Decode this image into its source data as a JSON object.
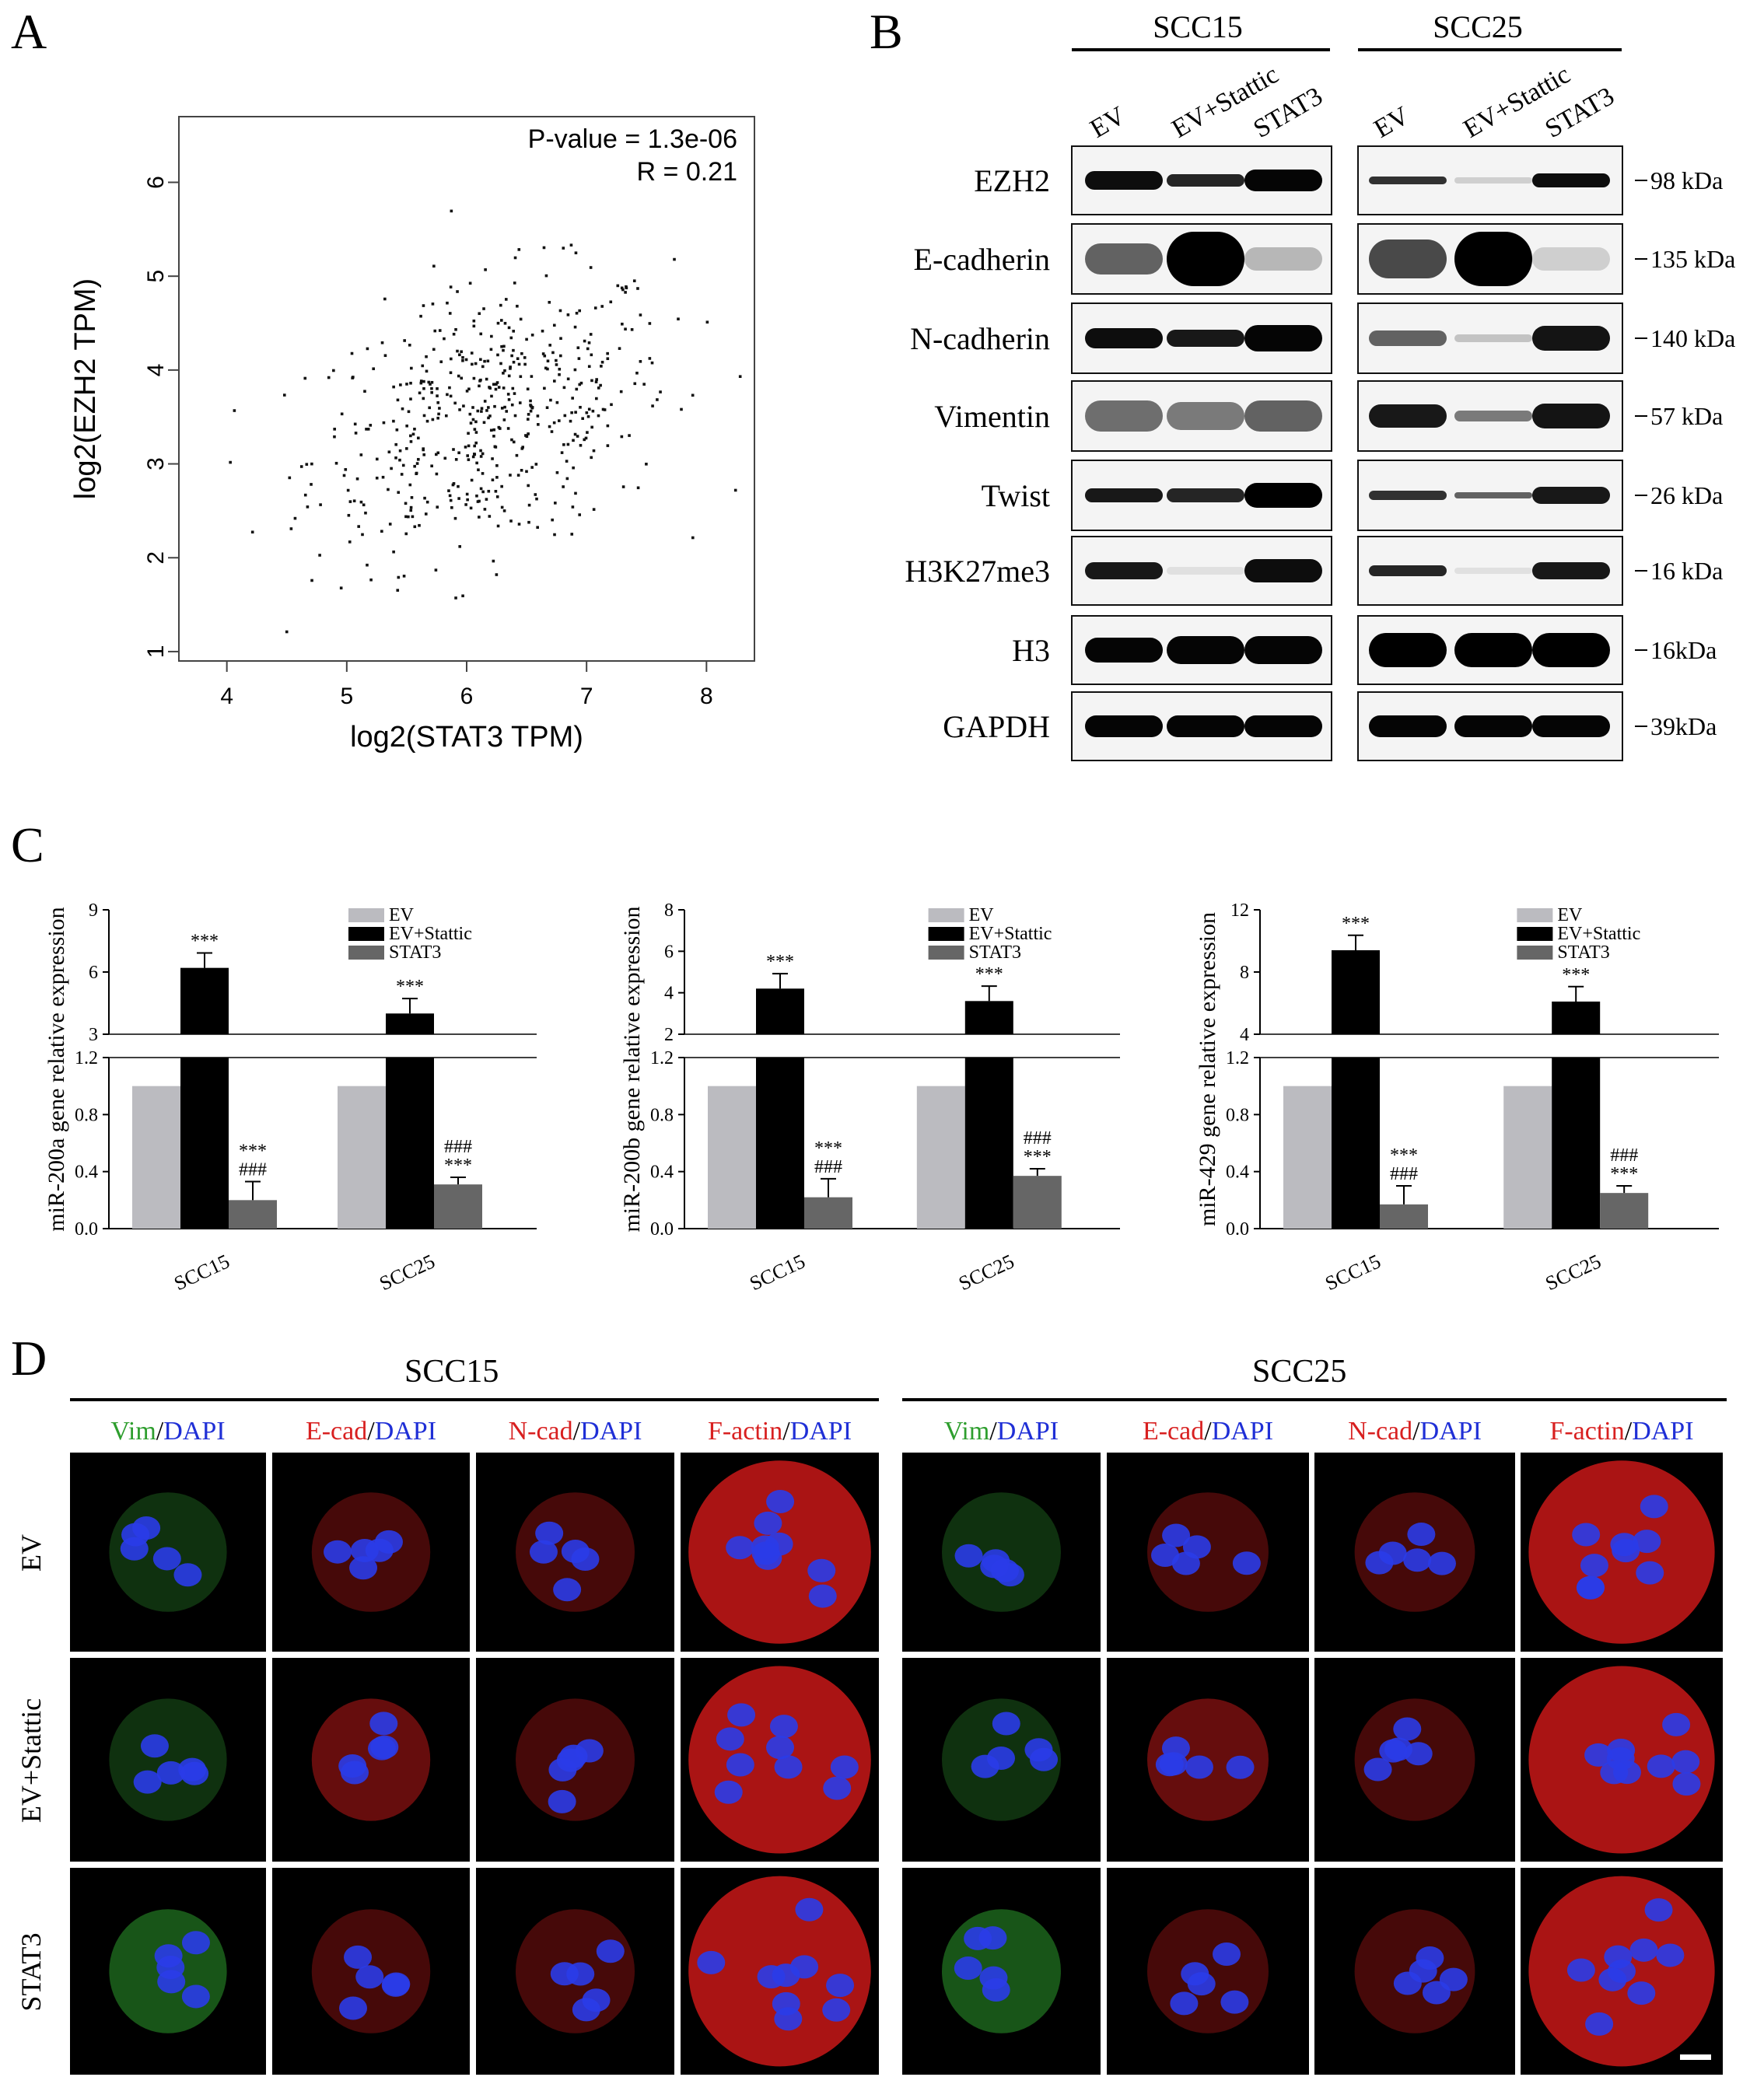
{
  "panels": {
    "a": "A",
    "b": "B",
    "c": "C",
    "d": "D"
  },
  "panel_a": {
    "xlabel": "log2(STAT3 TPM)",
    "ylabel": "log2(EZH2 TPM)",
    "pvalue": "P-value = 1.3e-06",
    "r": "R = 0.21",
    "xticks": [
      "4",
      "5",
      "6",
      "7",
      "8"
    ],
    "yticks": [
      "1",
      "2",
      "3",
      "4",
      "5",
      "6"
    ]
  },
  "panel_b": {
    "groups": [
      "SCC15",
      "SCC25"
    ],
    "lanes": [
      "EV",
      "EV+Stattic",
      "STAT3"
    ],
    "proteins": [
      "EZH2",
      "E-cadherin",
      "N-cadherin",
      "Vimentin",
      "Twist",
      "H3K27me3",
      "H3",
      "GAPDH"
    ],
    "sizes": [
      "98 kDa",
      "135 kDa",
      "140 kDa",
      "57 kDa",
      "26 kDa",
      "16 kDa",
      "16kDa",
      "39kDa"
    ]
  },
  "chart_data": [
    {
      "type": "bar",
      "categories": [
        "SCC15",
        "SCC25"
      ],
      "series": [
        {
          "name": "EV",
          "values": [
            1.0,
            1.0
          ]
        },
        {
          "name": "EV+Stattic",
          "values": [
            6.2,
            4.0
          ]
        },
        {
          "name": "STAT3",
          "values": [
            0.2,
            0.31
          ]
        }
      ],
      "ylabel": "miR-200a gene relative expression",
      "ylim_lower": [
        0,
        1.2
      ],
      "ylim_upper": [
        3,
        9
      ],
      "yticks_lower": [
        "0.0",
        "0.4",
        "0.8",
        "1.2"
      ],
      "yticks_upper": [
        "3",
        "6",
        "9"
      ],
      "annotations": [
        "***",
        "***",
        "###",
        "***",
        "###",
        "***"
      ],
      "legend": "top-right",
      "colors": [
        "#bbbbc0",
        "#000000",
        "#666666"
      ]
    },
    {
      "type": "bar",
      "categories": [
        "SCC15",
        "SCC25"
      ],
      "series": [
        {
          "name": "EV",
          "values": [
            1.0,
            1.0
          ]
        },
        {
          "name": "EV+Stattic",
          "values": [
            4.2,
            3.6
          ]
        },
        {
          "name": "STAT3",
          "values": [
            0.22,
            0.37
          ]
        }
      ],
      "ylabel": "miR-200b gene relative expression",
      "ylim_lower": [
        0,
        1.2
      ],
      "ylim_upper": [
        2,
        8
      ],
      "yticks_lower": [
        "0.0",
        "0.4",
        "0.8",
        "1.2"
      ],
      "yticks_upper": [
        "2",
        "4",
        "6",
        "8"
      ],
      "annotations": [
        "***",
        "***",
        "###",
        "***",
        "###",
        "***"
      ],
      "legend": "top-right",
      "colors": [
        "#bbbbc0",
        "#000000",
        "#666666"
      ]
    },
    {
      "type": "bar",
      "categories": [
        "SCC15",
        "SCC25"
      ],
      "series": [
        {
          "name": "EV",
          "values": [
            1.0,
            1.0
          ]
        },
        {
          "name": "EV+Stattic",
          "values": [
            9.4,
            6.1
          ]
        },
        {
          "name": "STAT3",
          "values": [
            0.17,
            0.25
          ]
        }
      ],
      "ylabel": "miR-429 gene relative expression",
      "ylim_lower": [
        0,
        1.2
      ],
      "ylim_upper": [
        4,
        12
      ],
      "yticks_lower": [
        "0.0",
        "0.4",
        "0.8",
        "1.2"
      ],
      "yticks_upper": [
        "4",
        "8",
        "12"
      ],
      "annotations": [
        "***",
        "***",
        "###",
        "***",
        "###",
        "***"
      ],
      "legend": "top-right",
      "colors": [
        "#bbbbc0",
        "#000000",
        "#666666"
      ]
    }
  ],
  "panel_d": {
    "groups": [
      "SCC15",
      "SCC25"
    ],
    "stains": [
      {
        "marker": "Vim",
        "sep": "/",
        "dapi": "DAPI",
        "color": "g"
      },
      {
        "marker": "E-cad",
        "sep": "/",
        "dapi": "DAPI",
        "color": "r"
      },
      {
        "marker": "N-cad",
        "sep": "/",
        "dapi": "DAPI",
        "color": "r"
      },
      {
        "marker": "F-actin",
        "sep": "/",
        "dapi": "DAPI",
        "color": "r"
      }
    ],
    "rows": [
      "EV",
      "EV+Stattic",
      "STAT3"
    ]
  }
}
